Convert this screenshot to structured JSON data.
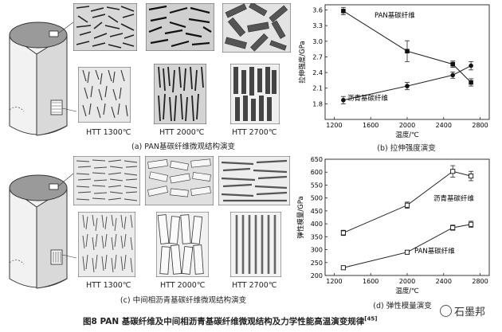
{
  "panels": {
    "a": {
      "caption": "(a) PAN基碳纤维微观结构演变",
      "htt_labels": [
        "HTT 1300℃",
        "HTT 2000℃",
        "HTT 2700℃"
      ]
    },
    "c": {
      "caption": "(c) 中间相沥青基碳纤维微观结构演变",
      "htt_labels": [
        "HTT 1300℃",
        "HTT 2000℃",
        "HTT 2700℃"
      ]
    },
    "b": {
      "caption": "(b) 拉伸强度演变"
    },
    "d": {
      "caption": "(d) 弹性模量演变"
    }
  },
  "figure_caption": "图8   PAN 基碳纤维及中间相沥青基碳纤维微观结构及力学性能高温演变规律",
  "figure_ref": "[45]",
  "watermark": "石墨邦",
  "chart_data": [
    {
      "type": "line",
      "xlabel": "温度/℃",
      "ylabel": "拉伸强度/GPa",
      "xlim": [
        1100,
        2900
      ],
      "ylim": [
        1.5,
        3.7
      ],
      "xticks": [
        1200,
        1600,
        2000,
        2400,
        2800
      ],
      "yticks": [
        1.8,
        2.1,
        2.4,
        2.7,
        3.0,
        3.3,
        3.6
      ],
      "series": [
        {
          "name": "PAN基碳纤维",
          "marker": "filled-square",
          "x": [
            1300,
            2000,
            2500,
            2700
          ],
          "y": [
            3.58,
            2.81,
            2.56,
            2.21
          ],
          "err": [
            0.07,
            0.2,
            0.06,
            0.07
          ]
        },
        {
          "name": "沥青基碳纤维",
          "marker": "filled-circle",
          "x": [
            1300,
            2000,
            2500,
            2700
          ],
          "y": [
            1.87,
            2.14,
            2.35,
            2.53
          ],
          "err": [
            0.07,
            0.07,
            0.06,
            0.08
          ]
        }
      ]
    },
    {
      "type": "line",
      "xlabel": "温度/℃",
      "ylabel": "弹性模量/GPa",
      "xlim": [
        1100,
        2900
      ],
      "ylim": [
        200,
        650
      ],
      "xticks": [
        1200,
        1600,
        2000,
        2400,
        2800
      ],
      "yticks": [
        200,
        250,
        300,
        350,
        400,
        450,
        500,
        550,
        600,
        650
      ],
      "series": [
        {
          "name": "沥青基碳纤维",
          "marker": "open-square",
          "x": [
            1300,
            2000,
            2500,
            2700
          ],
          "y": [
            365,
            472,
            603,
            585
          ],
          "err": [
            10,
            12,
            22,
            18
          ]
        },
        {
          "name": "PAN基碳纤维",
          "marker": "open-square",
          "x": [
            1300,
            2000,
            2500,
            2700
          ],
          "y": [
            230,
            290,
            385,
            398
          ],
          "err": [
            4,
            6,
            10,
            12
          ]
        }
      ]
    }
  ]
}
